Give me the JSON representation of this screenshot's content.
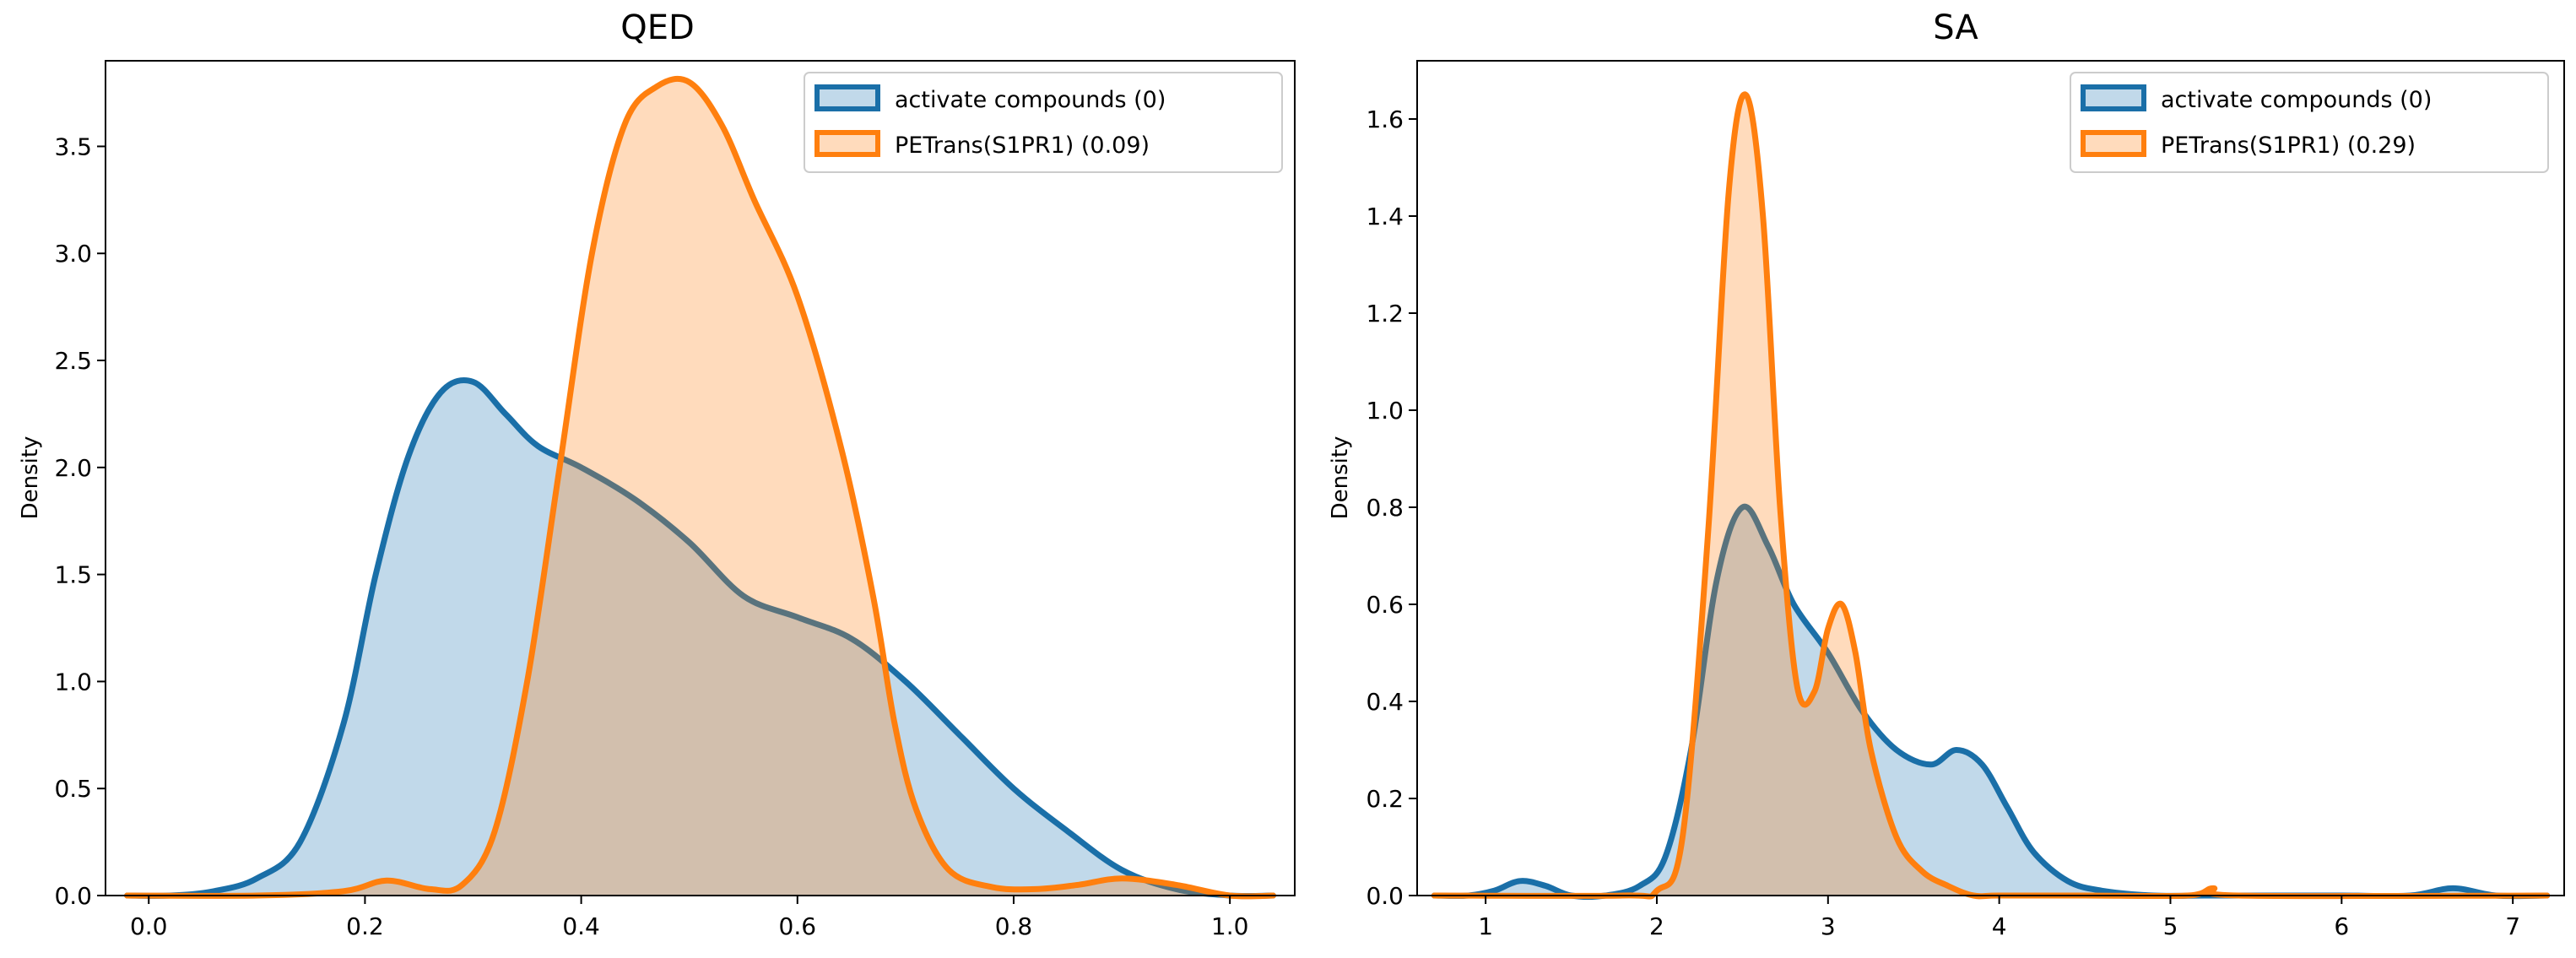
{
  "chart_data": [
    {
      "id": "qed",
      "type": "area",
      "title": "QED",
      "xlabel": "",
      "ylabel": "Density",
      "xlim": [
        -0.04,
        1.06
      ],
      "ylim": [
        0,
        3.9
      ],
      "xticks": [
        0.0,
        0.2,
        0.4,
        0.6,
        0.8,
        1.0
      ],
      "xtick_labels": [
        "0.0",
        "0.2",
        "0.4",
        "0.6",
        "0.8",
        "1.0"
      ],
      "yticks": [
        0.0,
        0.5,
        1.0,
        1.5,
        2.0,
        2.5,
        3.0,
        3.5
      ],
      "ytick_labels": [
        "0.0",
        "0.5",
        "1.0",
        "1.5",
        "2.0",
        "2.5",
        "3.0",
        "3.5"
      ],
      "legend_position": "top-right",
      "series": [
        {
          "name": "activate compounds (0)",
          "color": "#1f77b4",
          "stroke": "#1a6fa8",
          "x": [
            -0.02,
            0.02,
            0.06,
            0.1,
            0.14,
            0.18,
            0.21,
            0.24,
            0.27,
            0.3,
            0.33,
            0.36,
            0.4,
            0.45,
            0.5,
            0.55,
            0.6,
            0.65,
            0.7,
            0.75,
            0.8,
            0.85,
            0.9,
            0.95,
            1.0,
            1.04
          ],
          "values": [
            0.0,
            0.0,
            0.02,
            0.08,
            0.25,
            0.8,
            1.5,
            2.05,
            2.35,
            2.4,
            2.25,
            2.1,
            2.0,
            1.85,
            1.65,
            1.4,
            1.3,
            1.2,
            1.0,
            0.75,
            0.5,
            0.3,
            0.12,
            0.03,
            0.0,
            0.0
          ]
        },
        {
          "name": "PETrans(S1PR1) (0.09)",
          "color": "#ff7f0e",
          "stroke": "#ff7f0e",
          "x": [
            -0.02,
            0.1,
            0.18,
            0.22,
            0.26,
            0.29,
            0.32,
            0.35,
            0.38,
            0.41,
            0.44,
            0.47,
            0.5,
            0.53,
            0.56,
            0.6,
            0.64,
            0.67,
            0.69,
            0.71,
            0.74,
            0.78,
            0.82,
            0.86,
            0.9,
            0.95,
            1.0,
            1.04
          ],
          "values": [
            0.0,
            0.0,
            0.02,
            0.07,
            0.03,
            0.05,
            0.3,
            1.0,
            2.0,
            3.0,
            3.6,
            3.78,
            3.8,
            3.6,
            3.25,
            2.8,
            2.1,
            1.4,
            0.8,
            0.4,
            0.12,
            0.04,
            0.03,
            0.05,
            0.08,
            0.05,
            0.0,
            0.0
          ]
        }
      ]
    },
    {
      "id": "sa",
      "type": "area",
      "title": "SA",
      "xlabel": "",
      "ylabel": "Density",
      "xlim": [
        0.6,
        7.3
      ],
      "ylim": [
        0,
        1.72
      ],
      "xticks": [
        1,
        2,
        3,
        4,
        5,
        6,
        7
      ],
      "xtick_labels": [
        "1",
        "2",
        "3",
        "4",
        "5",
        "6",
        "7"
      ],
      "yticks": [
        0.0,
        0.2,
        0.4,
        0.6,
        0.8,
        1.0,
        1.2,
        1.4,
        1.6
      ],
      "ytick_labels": [
        "0.0",
        "0.2",
        "0.4",
        "0.6",
        "0.8",
        "1.0",
        "1.2",
        "1.4",
        "1.6"
      ],
      "legend_position": "top-right",
      "series": [
        {
          "name": "activate compounds (0)",
          "color": "#1f77b4",
          "stroke": "#1a6fa8",
          "x": [
            0.7,
            0.9,
            1.05,
            1.2,
            1.35,
            1.5,
            1.7,
            1.9,
            2.05,
            2.2,
            2.35,
            2.5,
            2.65,
            2.8,
            3.0,
            3.2,
            3.4,
            3.6,
            3.75,
            3.9,
            4.05,
            4.2,
            4.4,
            4.6,
            4.9,
            5.2,
            5.5,
            6.0,
            6.4,
            6.65,
            6.9,
            7.2
          ],
          "values": [
            0.0,
            0.0,
            0.01,
            0.03,
            0.02,
            0.0,
            0.0,
            0.02,
            0.08,
            0.3,
            0.65,
            0.8,
            0.72,
            0.6,
            0.5,
            0.38,
            0.3,
            0.27,
            0.3,
            0.27,
            0.18,
            0.09,
            0.03,
            0.01,
            0.0,
            0.0,
            0.0,
            0.0,
            0.0,
            0.015,
            0.0,
            0.0
          ]
        },
        {
          "name": "PETrans(S1PR1) (0.29)",
          "color": "#ff7f0e",
          "stroke": "#ff7f0e",
          "x": [
            0.7,
            1.8,
            2.0,
            2.15,
            2.3,
            2.42,
            2.52,
            2.62,
            2.72,
            2.82,
            2.92,
            3.0,
            3.08,
            3.16,
            3.25,
            3.4,
            3.55,
            3.7,
            3.85,
            4.0,
            4.5,
            5.1,
            5.25,
            5.4,
            7.2
          ],
          "values": [
            0.0,
            0.0,
            0.01,
            0.12,
            0.75,
            1.45,
            1.65,
            1.4,
            0.8,
            0.43,
            0.42,
            0.55,
            0.6,
            0.5,
            0.3,
            0.12,
            0.05,
            0.02,
            0.0,
            0.0,
            0.0,
            0.0,
            0.015,
            0.0,
            0.0
          ]
        }
      ]
    }
  ]
}
